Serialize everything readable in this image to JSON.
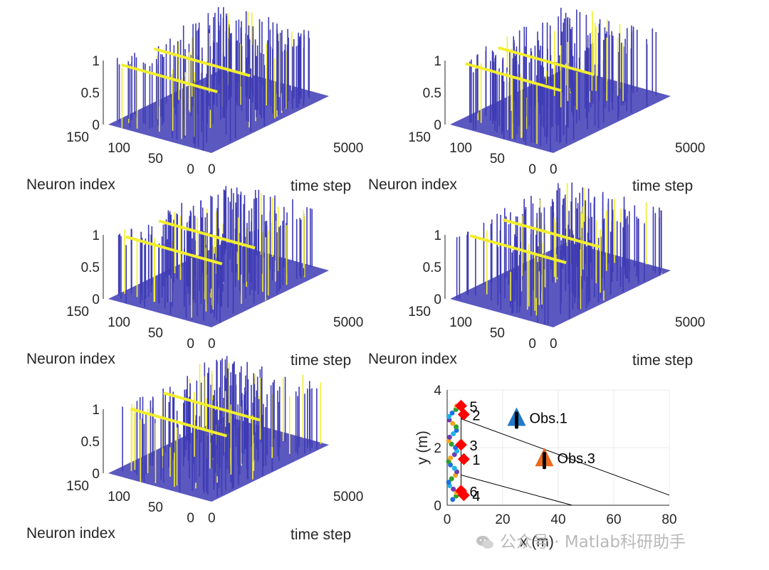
{
  "chart_data": [
    {
      "type": "bar3d-raster",
      "panel": "top-left",
      "zticks": [
        "0",
        "0.5",
        "1"
      ],
      "neuron_ticks": [
        "150",
        "100",
        "50",
        "0"
      ],
      "time_ticks": [
        "0",
        "5000"
      ],
      "zlim": [
        0,
        1
      ],
      "neuron_range": [
        0,
        150
      ],
      "time_range": [
        0,
        5000
      ],
      "ylabel": "Neuron index",
      "xlabel": "time step",
      "colors": {
        "low": "#3e3bb5",
        "high": "#f2ee2c"
      }
    },
    {
      "type": "bar3d-raster",
      "panel": "top-right",
      "zticks": [
        "0",
        "0.5",
        "1"
      ],
      "neuron_ticks": [
        "150",
        "100",
        "50",
        "0"
      ],
      "time_ticks": [
        "0",
        "5000"
      ],
      "zlim": [
        0,
        1
      ],
      "neuron_range": [
        0,
        150
      ],
      "time_range": [
        0,
        5000
      ],
      "ylabel": "Neuron index",
      "xlabel": "time step",
      "colors": {
        "low": "#3e3bb5",
        "high": "#f2ee2c"
      }
    },
    {
      "type": "bar3d-raster",
      "panel": "middle-left",
      "zticks": [
        "0",
        "0.5",
        "1"
      ],
      "neuron_ticks": [
        "150",
        "100",
        "50",
        "0"
      ],
      "time_ticks": [
        "0",
        "5000"
      ],
      "zlim": [
        0,
        1
      ],
      "neuron_range": [
        0,
        150
      ],
      "time_range": [
        0,
        5000
      ],
      "ylabel": "Neuron index",
      "xlabel": "time step",
      "colors": {
        "low": "#3e3bb5",
        "high": "#f2ee2c"
      }
    },
    {
      "type": "bar3d-raster",
      "panel": "middle-right",
      "zticks": [
        "0",
        "0.5",
        "1"
      ],
      "neuron_ticks": [
        "150",
        "100",
        "50",
        "0"
      ],
      "time_ticks": [
        "0",
        "5000"
      ],
      "zlim": [
        0,
        1
      ],
      "neuron_range": [
        0,
        150
      ],
      "time_range": [
        0,
        5000
      ],
      "ylabel": "Neuron index",
      "xlabel": "time step",
      "colors": {
        "low": "#3e3bb5",
        "high": "#f2ee2c"
      }
    },
    {
      "type": "bar3d-raster",
      "panel": "bottom-left",
      "zticks": [
        "0",
        "0.5",
        "1"
      ],
      "neuron_ticks": [
        "150",
        "100",
        "50",
        "0"
      ],
      "time_ticks": [
        "0",
        "5000"
      ],
      "zlim": [
        0,
        1
      ],
      "neuron_range": [
        0,
        150
      ],
      "time_range": [
        0,
        5000
      ],
      "ylabel": "Neuron index",
      "xlabel": "time step",
      "colors": {
        "low": "#3e3bb5",
        "high": "#f2ee2c"
      }
    },
    {
      "type": "scatter",
      "panel": "bottom-right",
      "xlabel": "x (m)",
      "ylabel": "y (m)",
      "xlim": [
        0,
        80
      ],
      "ylim": [
        0,
        4
      ],
      "xticks": [
        "0",
        "20",
        "40",
        "60",
        "80"
      ],
      "yticks": [
        "0",
        "2",
        "4"
      ],
      "agents": [
        {
          "label": "1",
          "x": 6,
          "y": 1.6
        },
        {
          "label": "2",
          "x": 6,
          "y": 3.15
        },
        {
          "label": "3",
          "x": 5,
          "y": 2.1
        },
        {
          "label": "4",
          "x": 6,
          "y": 0.35
        },
        {
          "label": "5",
          "x": 5,
          "y": 3.45
        },
        {
          "label": "6",
          "x": 5,
          "y": 0.5
        }
      ],
      "obstacles": [
        {
          "label": "Obs.1",
          "x": 25,
          "y": 3.0,
          "color": "#1f78c8"
        },
        {
          "label": "Obs.3",
          "x": 35,
          "y": 1.6,
          "color": "#ea6a1e"
        }
      ],
      "lines": [
        {
          "from": [
            5,
            3.0
          ],
          "to": [
            80,
            0.35
          ]
        },
        {
          "from": [
            5,
            1.05
          ],
          "to": [
            45,
            0.0
          ]
        }
      ],
      "colors": {
        "agent": "#ff0000",
        "line": "#000000",
        "grid": "#ebebeb"
      }
    }
  ],
  "watermark": {
    "text": "公众号 · Matlab科研助手"
  }
}
